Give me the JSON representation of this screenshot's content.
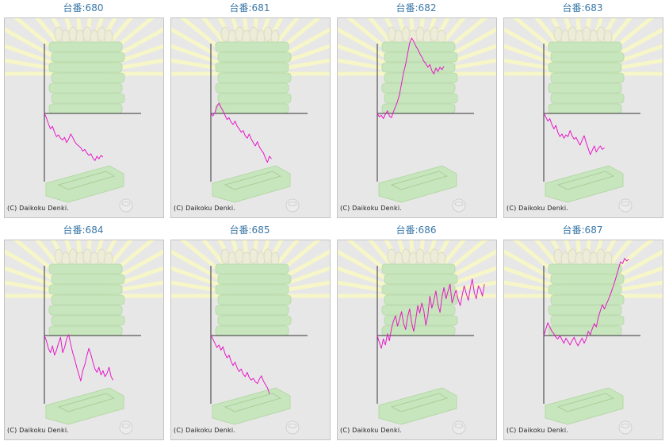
{
  "title_prefix": "台番:",
  "copyright": "(C) Daikoku Denki.",
  "colors": {
    "line": "#e619c8",
    "axis": "#333333",
    "title": "#3a78a8",
    "panel_bg": "#e7e7e7",
    "art_green": "#c8e6bd",
    "art_rays": "#f6f6c8"
  },
  "chart_data": [
    {
      "type": "line",
      "machine": "680",
      "title": "台番:680",
      "values": [
        0,
        -5,
        -12,
        -18,
        -15,
        -22,
        -27,
        -25,
        -29,
        -31,
        -28,
        -34,
        -30,
        -24,
        -28,
        -33,
        -36,
        -38,
        -40,
        -44,
        -42,
        -46,
        -49,
        -47,
        -52,
        -55,
        -50,
        -53,
        -49,
        -51
      ]
    },
    {
      "type": "line",
      "machine": "681",
      "title": "台番:681",
      "values": [
        0,
        -3,
        1,
        8,
        12,
        7,
        3,
        -2,
        -7,
        -5,
        -10,
        -13,
        -9,
        -15,
        -18,
        -22,
        -20,
        -26,
        -29,
        -24,
        -30,
        -34,
        -38,
        -33,
        -39,
        -43,
        -46,
        -52,
        -57,
        -50,
        -53
      ]
    },
    {
      "type": "line",
      "machine": "682",
      "title": "台番:682",
      "values": [
        0,
        -4,
        -2,
        -6,
        -1,
        3,
        -3,
        -5,
        2,
        8,
        14,
        22,
        35,
        48,
        57,
        70,
        82,
        88,
        84,
        79,
        75,
        70,
        66,
        61,
        58,
        54,
        57,
        50,
        46,
        53,
        49,
        54,
        51,
        55
      ]
    },
    {
      "type": "line",
      "machine": "683",
      "title": "台番:683",
      "values": [
        0,
        -4,
        -9,
        -6,
        -13,
        -18,
        -14,
        -22,
        -27,
        -24,
        -29,
        -25,
        -27,
        -20,
        -26,
        -30,
        -28,
        -33,
        -37,
        -31,
        -26,
        -34,
        -41,
        -48,
        -43,
        -38,
        -45,
        -41,
        -38,
        -42,
        -40
      ]
    },
    {
      "type": "line",
      "machine": "684",
      "title": "台番:684",
      "values": [
        0,
        -6,
        -15,
        -20,
        -12,
        -23,
        -17,
        -9,
        -2,
        -20,
        -14,
        -4,
        1,
        -10,
        -20,
        -28,
        -37,
        -45,
        -53,
        -41,
        -34,
        -24,
        -15,
        -22,
        -31,
        -39,
        -43,
        -37,
        -46,
        -41,
        -48,
        -44,
        -37,
        -48,
        -52
      ]
    },
    {
      "type": "line",
      "machine": "685",
      "title": "台番:685",
      "values": [
        0,
        -4,
        -9,
        -14,
        -11,
        -17,
        -13,
        -21,
        -26,
        -23,
        -30,
        -35,
        -31,
        -38,
        -42,
        -39,
        -45,
        -48,
        -43,
        -49,
        -52,
        -50,
        -54,
        -56,
        -51,
        -47,
        -53,
        -57,
        -61,
        -68
      ]
    },
    {
      "type": "line",
      "machine": "686",
      "title": "台番:686",
      "values": [
        0,
        -8,
        -15,
        -4,
        -11,
        2,
        -6,
        8,
        17,
        23,
        11,
        19,
        28,
        14,
        7,
        22,
        31,
        15,
        5,
        18,
        35,
        26,
        38,
        29,
        12,
        24,
        46,
        32,
        41,
        52,
        36,
        27,
        45,
        56,
        43,
        52,
        60,
        38,
        46,
        53,
        42,
        35,
        47,
        58,
        49,
        41,
        55,
        66,
        50,
        43,
        58,
        54,
        46,
        60
      ]
    },
    {
      "type": "line",
      "machine": "687",
      "title": "台番:687",
      "values": [
        0,
        7,
        15,
        10,
        5,
        2,
        -2,
        -4,
        0,
        -5,
        -9,
        -3,
        -7,
        -11,
        -6,
        -2,
        -8,
        -12,
        -7,
        -3,
        -9,
        -4,
        5,
        1,
        8,
        14,
        10,
        21,
        29,
        36,
        31,
        37,
        42,
        48,
        55,
        62,
        70,
        78,
        86,
        84,
        90,
        87,
        89
      ]
    }
  ]
}
